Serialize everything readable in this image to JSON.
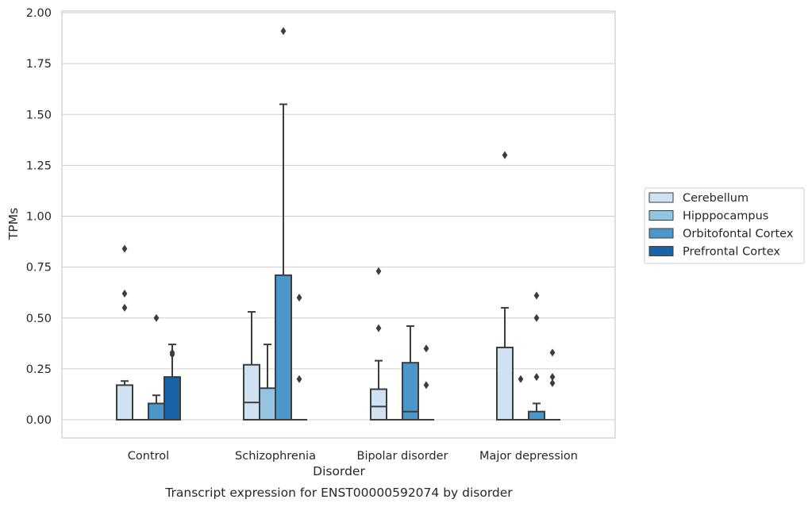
{
  "chart_data": {
    "type": "box",
    "title": "",
    "xlabel": "Disorder",
    "ylabel": "TPMs",
    "caption": "Transcript expression for ENST00000592074 by disorder",
    "ylim": [
      -0.09,
      2.01
    ],
    "yticks": [
      "0.00",
      "0.25",
      "0.50",
      "0.75",
      "1.00",
      "1.25",
      "1.50",
      "1.75",
      "2.00"
    ],
    "grid": "horizontal",
    "legend_position": "right",
    "categories": [
      "Control",
      "Schizophrenia",
      "Bipolar disorder",
      "Major depression"
    ],
    "series": [
      {
        "name": "Cerebellum",
        "color": "#d0e1f2",
        "boxes": [
          {
            "q1": 0.0,
            "median": 0.0,
            "q3": 0.17,
            "whisker_low": 0.0,
            "whisker_high": 0.19,
            "outliers": [
              0.55,
              0.62,
              0.84
            ]
          },
          {
            "q1": 0.0,
            "median": 0.085,
            "q3": 0.27,
            "whisker_low": 0.0,
            "whisker_high": 0.53,
            "outliers": []
          },
          {
            "q1": 0.0,
            "median": 0.065,
            "q3": 0.15,
            "whisker_low": 0.0,
            "whisker_high": 0.29,
            "outliers": [
              0.45,
              0.73
            ]
          },
          {
            "q1": 0.0,
            "median": 0.0,
            "q3": 0.355,
            "whisker_low": 0.0,
            "whisker_high": 0.55,
            "outliers": [
              1.3
            ]
          }
        ]
      },
      {
        "name": "Hipppocampus",
        "color": "#94c4df",
        "boxes": [
          {
            "q1": 0.0,
            "median": 0.0,
            "q3": 0.0,
            "whisker_low": 0.0,
            "whisker_high": 0.0,
            "outliers": []
          },
          {
            "q1": 0.0,
            "median": 0.0,
            "q3": 0.155,
            "whisker_low": 0.0,
            "whisker_high": 0.37,
            "outliers": []
          },
          {
            "q1": 0.0,
            "median": 0.0,
            "q3": 0.0,
            "whisker_low": 0.0,
            "whisker_high": 0.0,
            "outliers": []
          },
          {
            "q1": 0.0,
            "median": 0.0,
            "q3": 0.0,
            "whisker_low": 0.0,
            "whisker_high": 0.0,
            "outliers": [
              0.2
            ]
          }
        ]
      },
      {
        "name": "Orbitofontal Cortex",
        "color": "#4a98c9",
        "boxes": [
          {
            "q1": 0.0,
            "median": 0.0,
            "q3": 0.08,
            "whisker_low": 0.0,
            "whisker_high": 0.12,
            "outliers": [
              0.5
            ]
          },
          {
            "q1": 0.0,
            "median": 0.0,
            "q3": 0.71,
            "whisker_low": 0.0,
            "whisker_high": 1.55,
            "outliers": [
              1.91
            ]
          },
          {
            "q1": 0.0,
            "median": 0.04,
            "q3": 0.28,
            "whisker_low": 0.0,
            "whisker_high": 0.46,
            "outliers": []
          },
          {
            "q1": 0.0,
            "median": 0.0,
            "q3": 0.04,
            "whisker_low": 0.0,
            "whisker_high": 0.08,
            "outliers": [
              0.21,
              0.5,
              0.61
            ]
          }
        ]
      },
      {
        "name": "Prefrontal Cortex",
        "color": "#1764ab",
        "boxes": [
          {
            "q1": 0.0,
            "median": 0.0,
            "q3": 0.21,
            "whisker_low": 0.0,
            "whisker_high": 0.37,
            "outliers": [
              0.32,
              0.33
            ]
          },
          {
            "q1": 0.0,
            "median": 0.0,
            "q3": 0.0,
            "whisker_low": 0.0,
            "whisker_high": 0.0,
            "outliers": [
              0.2,
              0.6
            ]
          },
          {
            "q1": 0.0,
            "median": 0.0,
            "q3": 0.0,
            "whisker_low": 0.0,
            "whisker_high": 0.0,
            "outliers": [
              0.17,
              0.35
            ]
          },
          {
            "q1": 0.0,
            "median": 0.0,
            "q3": 0.0,
            "whisker_low": 0.0,
            "whisker_high": 0.0,
            "outliers": [
              0.18,
              0.21,
              0.33
            ]
          }
        ]
      }
    ],
    "colors": {
      "box_edge": "#3d3d3d",
      "grid": "#cccccc",
      "spine": "#cccccc",
      "text": "#262626"
    }
  }
}
